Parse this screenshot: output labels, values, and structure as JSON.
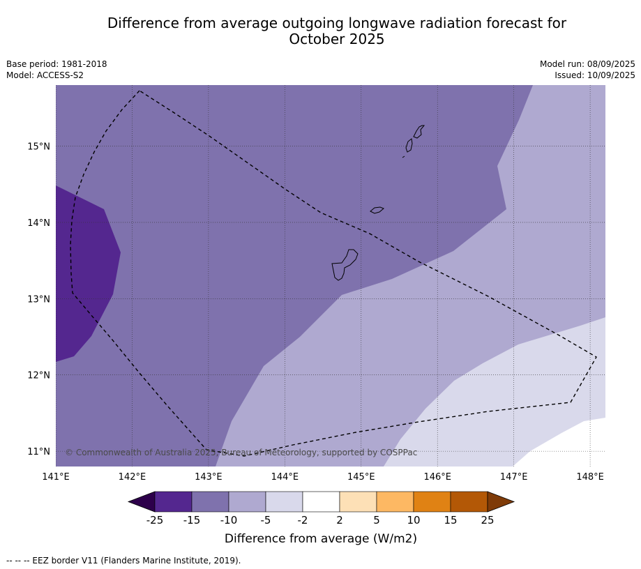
{
  "title_line1": "Difference from average outgoing longwave radiation forecast for",
  "title_line2": "October 2025",
  "meta_left": {
    "base_period": "Base period: 1981-2018",
    "model": "Model: ACCESS-S2"
  },
  "meta_right": {
    "model_run": "Model run: 08/09/2025",
    "issued": "Issued: 10/09/2025"
  },
  "map": {
    "lon_range": [
      141.0,
      148.2
    ],
    "lat_range": [
      10.8,
      15.8
    ],
    "lon_ticks": [
      {
        "value": 141,
        "label": "141°E"
      },
      {
        "value": 142,
        "label": "142°E"
      },
      {
        "value": 143,
        "label": "143°E"
      },
      {
        "value": 144,
        "label": "144°E"
      },
      {
        "value": 145,
        "label": "145°E"
      },
      {
        "value": 146,
        "label": "146°E"
      },
      {
        "value": 147,
        "label": "147°E"
      },
      {
        "value": 148,
        "label": "148°E"
      }
    ],
    "lat_ticks": [
      {
        "value": 15,
        "label": "15°N"
      },
      {
        "value": 14,
        "label": "14°N"
      },
      {
        "value": 13,
        "label": "13°N"
      },
      {
        "value": 12,
        "label": "12°N"
      },
      {
        "value": 11,
        "label": "11°N"
      }
    ],
    "copyright": "© Commonwealth of Australia 2025, Bureau of Meteorology, supported by COSPPac"
  },
  "colorbar": {
    "colors": [
      "#54278f",
      "#7f72ad",
      "#afa9d0",
      "#d9d9eb",
      "#ffffff",
      "#fde0b6",
      "#fdb863",
      "#e08214",
      "#b35806"
    ],
    "extend_low_color": "#2d004b",
    "extend_high_color": "#7f3b08",
    "tick_labels": [
      "-25",
      "-15",
      "-10",
      "-5",
      "-2",
      "2",
      "5",
      "10",
      "15",
      "25"
    ],
    "label": "Difference from average (W/m2)"
  },
  "footnote": "--  --  -- EEZ border V11 (Flanders Marine Institute, 2019)."
}
